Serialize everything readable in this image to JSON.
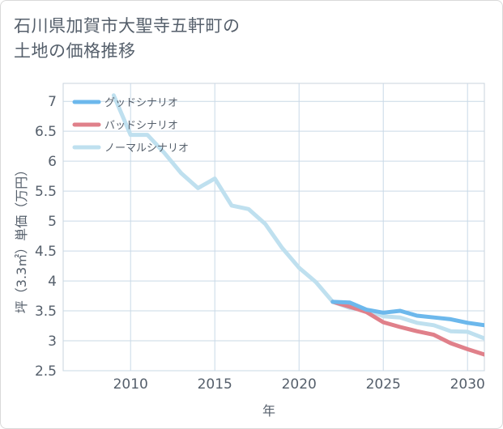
{
  "title_lines": [
    "石川県加賀市大聖寺五軒町の",
    "土地の価格推移"
  ],
  "chart_data": {
    "type": "line",
    "xlabel": "年",
    "ylabel": "坪（3.3㎡）単価（万円）",
    "xlim": [
      2006,
      2031
    ],
    "ylim": [
      2.5,
      7.3
    ],
    "xticks": [
      2010,
      2015,
      2020,
      2025,
      2030
    ],
    "yticks": [
      2.5,
      3,
      3.5,
      4,
      4.5,
      5,
      5.5,
      6,
      6.5,
      7
    ],
    "ytick_labels": [
      "2.5",
      "3",
      "3.5",
      "4",
      "4.5",
      "5",
      "5.5",
      "6",
      "6.5",
      "7"
    ],
    "grid": true,
    "legend_position": "top-left",
    "series": [
      {
        "name": "グッドシナリオ",
        "color": "#6cb8ec",
        "x": [
          2022,
          2023,
          2024,
          2025,
          2026,
          2027,
          2028,
          2029,
          2030,
          2031
        ],
        "values": [
          3.65,
          3.64,
          3.52,
          3.47,
          3.5,
          3.42,
          3.39,
          3.36,
          3.3,
          3.26
        ]
      },
      {
        "name": "バッドシナリオ",
        "color": "#e0808a",
        "x": [
          2022,
          2023,
          2024,
          2025,
          2026,
          2027,
          2028,
          2029,
          2030,
          2031
        ],
        "values": [
          3.65,
          3.57,
          3.48,
          3.31,
          3.23,
          3.16,
          3.1,
          2.96,
          2.86,
          2.77
        ]
      },
      {
        "name": "ノーマルシナリオ",
        "color": "#bfe0ef",
        "x": [
          2009,
          2010,
          2011,
          2012,
          2013,
          2014,
          2015,
          2016,
          2017,
          2018,
          2019,
          2020,
          2021,
          2022,
          2023,
          2024,
          2025,
          2026,
          2027,
          2028,
          2029,
          2030,
          2031
        ],
        "values": [
          7.1,
          6.44,
          6.44,
          6.14,
          5.8,
          5.55,
          5.71,
          5.26,
          5.2,
          4.95,
          4.55,
          4.22,
          3.98,
          3.65,
          3.55,
          3.52,
          3.41,
          3.39,
          3.3,
          3.26,
          3.16,
          3.15,
          3.04
        ]
      }
    ]
  }
}
